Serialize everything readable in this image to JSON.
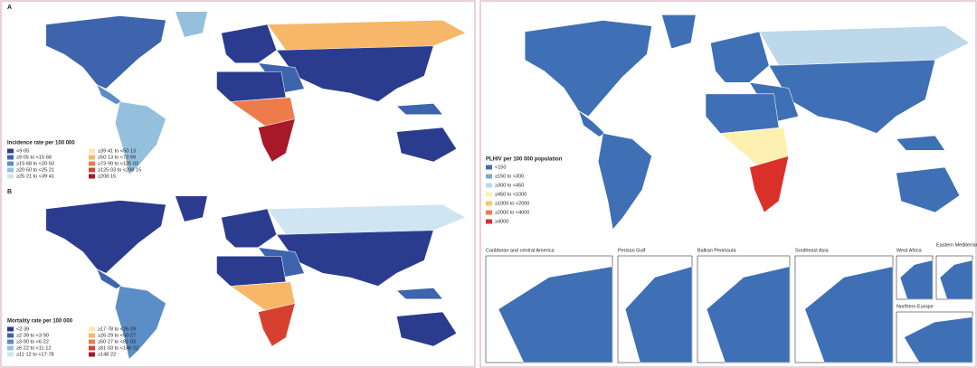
{
  "panels": [
    {
      "label": "A",
      "legend": {
        "title": "Incidence rate per 100 000",
        "items": [
          {
            "label": "<9·05",
            "color": "#2b3c8f"
          },
          {
            "label": "≥9·05 to <15·68",
            "color": "#3d64ad"
          },
          {
            "label": "≥15·68 to <20·50",
            "color": "#5b8dc6"
          },
          {
            "label": "≥20·50 to <25·21",
            "color": "#94c0de"
          },
          {
            "label": "≥25·21 to <39·41",
            "color": "#cfe5f2"
          },
          {
            "label": "≥39·41 to <50·13",
            "color": "#fde8a6"
          },
          {
            "label": "≥50·13 to <73·99",
            "color": "#f7b768"
          },
          {
            "label": "≥73·99 to <125·03",
            "color": "#ee7c4a"
          },
          {
            "label": "≥125·03 to <208·15",
            "color": "#d6412f"
          },
          {
            "label": "≥208·15",
            "color": "#a6182a"
          }
        ]
      }
    },
    {
      "label": "B",
      "legend": {
        "title": "Mortality rate per 100 000",
        "items": [
          {
            "label": "<2·39",
            "color": "#2b3c8f"
          },
          {
            "label": "≥2·39 to <3·90",
            "color": "#3d64ad"
          },
          {
            "label": "≥3·90 to <6·22",
            "color": "#5b8dc6"
          },
          {
            "label": "≥6·22 to <11·12",
            "color": "#94c0de"
          },
          {
            "label": "≥11·12 to <17·78",
            "color": "#cfe5f2"
          },
          {
            "label": "≥17·78 to <26·29",
            "color": "#fde8a6"
          },
          {
            "label": "≥26·29 to <50·27",
            "color": "#f7b768"
          },
          {
            "label": "≥50·27 to <81·03",
            "color": "#ee7c4a"
          },
          {
            "label": "≥81·03 to <148·22",
            "color": "#d6412f"
          },
          {
            "label": "≥148·22",
            "color": "#a6182a"
          }
        ]
      }
    },
    {
      "legend": {
        "title": "PLHIV per 100 000 population",
        "items": [
          {
            "label": "<150",
            "color": "#3f6fb4"
          },
          {
            "label": "≥150 to <300",
            "color": "#7ea8d3"
          },
          {
            "label": "≥300 to <450",
            "color": "#bcd8ea"
          },
          {
            "label": "≥450 to <1000",
            "color": "#fdf0b0"
          },
          {
            "label": "≥1000 to <2000",
            "color": "#f9c46e"
          },
          {
            "label": "≥2000 to <4000",
            "color": "#ee7d4c"
          },
          {
            "label": "≥4000",
            "color": "#d9312a"
          }
        ]
      }
    }
  ],
  "insets": [
    "Caribbean and central America",
    "Persian Gulf",
    "Balkan Peninsula",
    "Southeast Asia",
    "West Africa",
    "Eastern Mediterranean",
    "Northern Europe"
  ]
}
